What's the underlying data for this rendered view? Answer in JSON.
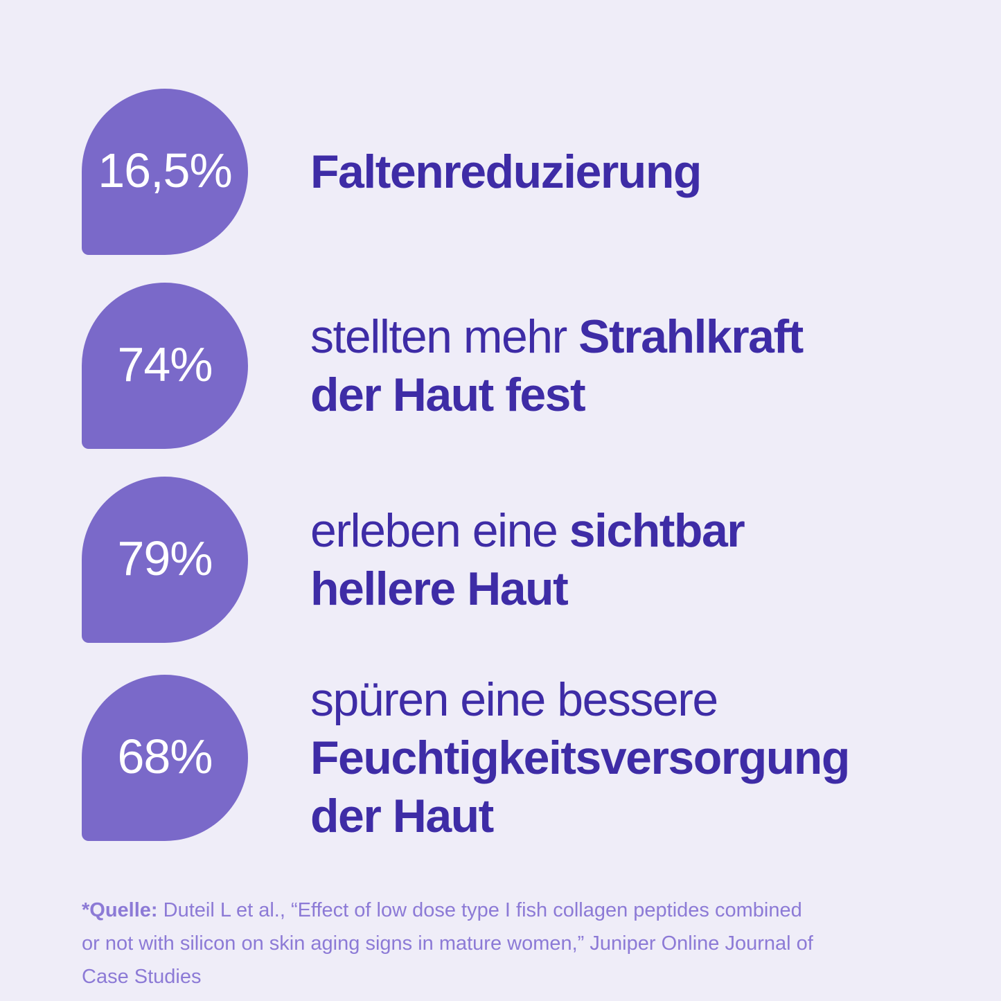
{
  "colors": {
    "background": "#EFEDF8",
    "drop": "#7A69C9",
    "stat_text": "#FFFFFF",
    "headline_text": "#3E2CA6",
    "footnote_text": "#8C7AD6"
  },
  "rows": [
    {
      "stat": "16,5%",
      "lines": [
        [
          {
            "text": "Faltenreduzierung",
            "bold": true
          }
        ]
      ]
    },
    {
      "stat": "74%",
      "lines": [
        [
          {
            "text": "stellten mehr ",
            "bold": false
          },
          {
            "text": "Strahlkraft",
            "bold": true
          }
        ],
        [
          {
            "text": "der Haut fest",
            "bold": true
          }
        ]
      ]
    },
    {
      "stat": "79%",
      "lines": [
        [
          {
            "text": "erleben eine ",
            "bold": false
          },
          {
            "text": "sichtbar",
            "bold": true
          }
        ],
        [
          {
            "text": "hellere Haut",
            "bold": true
          }
        ]
      ]
    },
    {
      "stat": "68%",
      "lines": [
        [
          {
            "text": "spüren eine bessere",
            "bold": false
          }
        ],
        [
          {
            "text": "Feuchtigkeitsversorgung",
            "bold": true
          }
        ],
        [
          {
            "text": "der Haut",
            "bold": true
          }
        ]
      ]
    }
  ],
  "footnote": {
    "lines": [
      [
        {
          "text": "*Quelle:",
          "bold": true
        },
        {
          "text": " Duteil L et al., “Effect of low dose type I fish collagen peptides combined",
          "bold": false
        }
      ],
      [
        {
          "text": "or not with silicon on skin aging signs in mature women,” Juniper Online Journal of",
          "bold": false
        }
      ],
      [
        {
          "text": "Case Studies",
          "bold": false
        }
      ]
    ]
  }
}
